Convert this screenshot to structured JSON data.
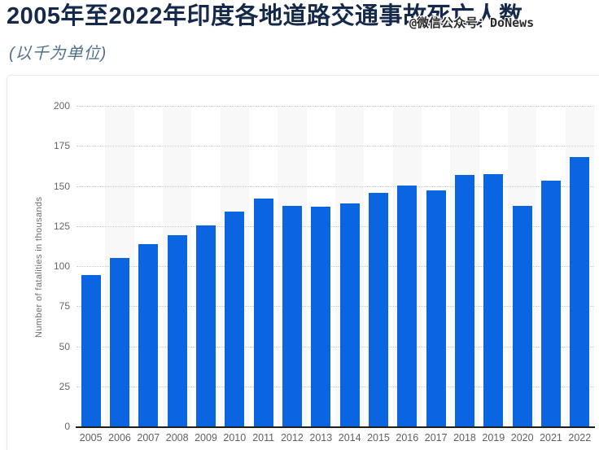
{
  "header": {
    "title": "2005年至2022年印度各地道路交通事故死亡人数",
    "subtitle": "(以千为单位)",
    "watermark": "@微信公众号：DoNews"
  },
  "chart_data": {
    "type": "bar",
    "title": "2005年至2022年印度各地道路交通事故死亡人数 (以千为单位)",
    "xlabel": "",
    "ylabel": "Number of fatalities in thousands",
    "categories": [
      "2005",
      "2006",
      "2007",
      "2008",
      "2009",
      "2010",
      "2011",
      "2012",
      "2013",
      "2014",
      "2015",
      "2016",
      "2017",
      "2018",
      "2019",
      "2020",
      "2021",
      "2022"
    ],
    "values": [
      94.9,
      105.7,
      114.4,
      119.9,
      125.7,
      134.5,
      142.5,
      138.3,
      137.6,
      139.7,
      146.1,
      150.8,
      147.9,
      157.6,
      158,
      138,
      153.9,
      168.5
    ],
    "ylim": [
      0,
      200
    ],
    "yticks": [
      0,
      25,
      50,
      75,
      100,
      125,
      150,
      175,
      200
    ],
    "grid": "horizontal-dotted",
    "legend": "none",
    "column_stripes": "alternating-even-columns"
  },
  "colors": {
    "title": "#15294b",
    "subtitle": "#50718f",
    "bar": "#0b64e0",
    "stripe": "#f8f8f9",
    "gridline": "#c9c9ca",
    "axis_line": "#1f1f1f",
    "tick_label": "#666666"
  }
}
